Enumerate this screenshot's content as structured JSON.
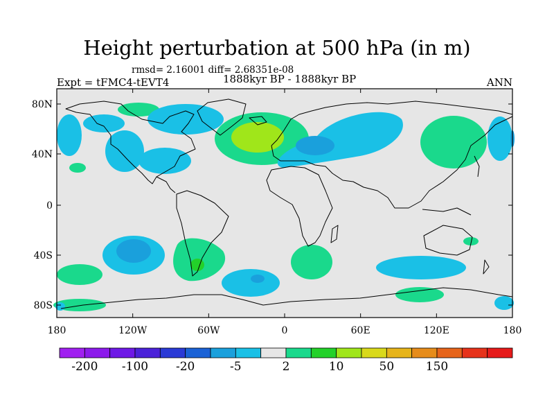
{
  "title": "Height perturbation at 500 hPa (in m)",
  "stats": "rmsd= 2.16001 diff= 2.68351e-08",
  "left_label": "Expt = tFMC4-tEVT4",
  "center_label": "1888kyr BP - 1888kyr BP",
  "right_label": "ANN",
  "lat_ticks": [
    "80N",
    "40N",
    "0",
    "40S",
    "80S"
  ],
  "lon_ticks": [
    "180",
    "120W",
    "60W",
    "0",
    "60E",
    "120E",
    "180"
  ],
  "colorbar": {
    "colors": [
      "#a020f0",
      "#8c1aeb",
      "#6e19e6",
      "#4b22d9",
      "#2a3ad6",
      "#1a62d6",
      "#1aa0dc",
      "#1ac0e6",
      "#e6e6e6",
      "#1ad98c",
      "#23d12a",
      "#a0e61a",
      "#d9d91a",
      "#e6b41a",
      "#e68c1a",
      "#e6641a",
      "#e6321a",
      "#e61a1a"
    ],
    "labels": [
      "-200",
      "-100",
      "-20",
      "-5",
      "2",
      "10",
      "50",
      "150"
    ]
  },
  "colors": {
    "background": "#e6e6e6",
    "neg_light": "#1ac0e6",
    "neg_mid": "#1aa0dc",
    "pos_light": "#1ad98c",
    "pos_mid": "#23d12a",
    "pos_strong": "#a0e61a"
  }
}
